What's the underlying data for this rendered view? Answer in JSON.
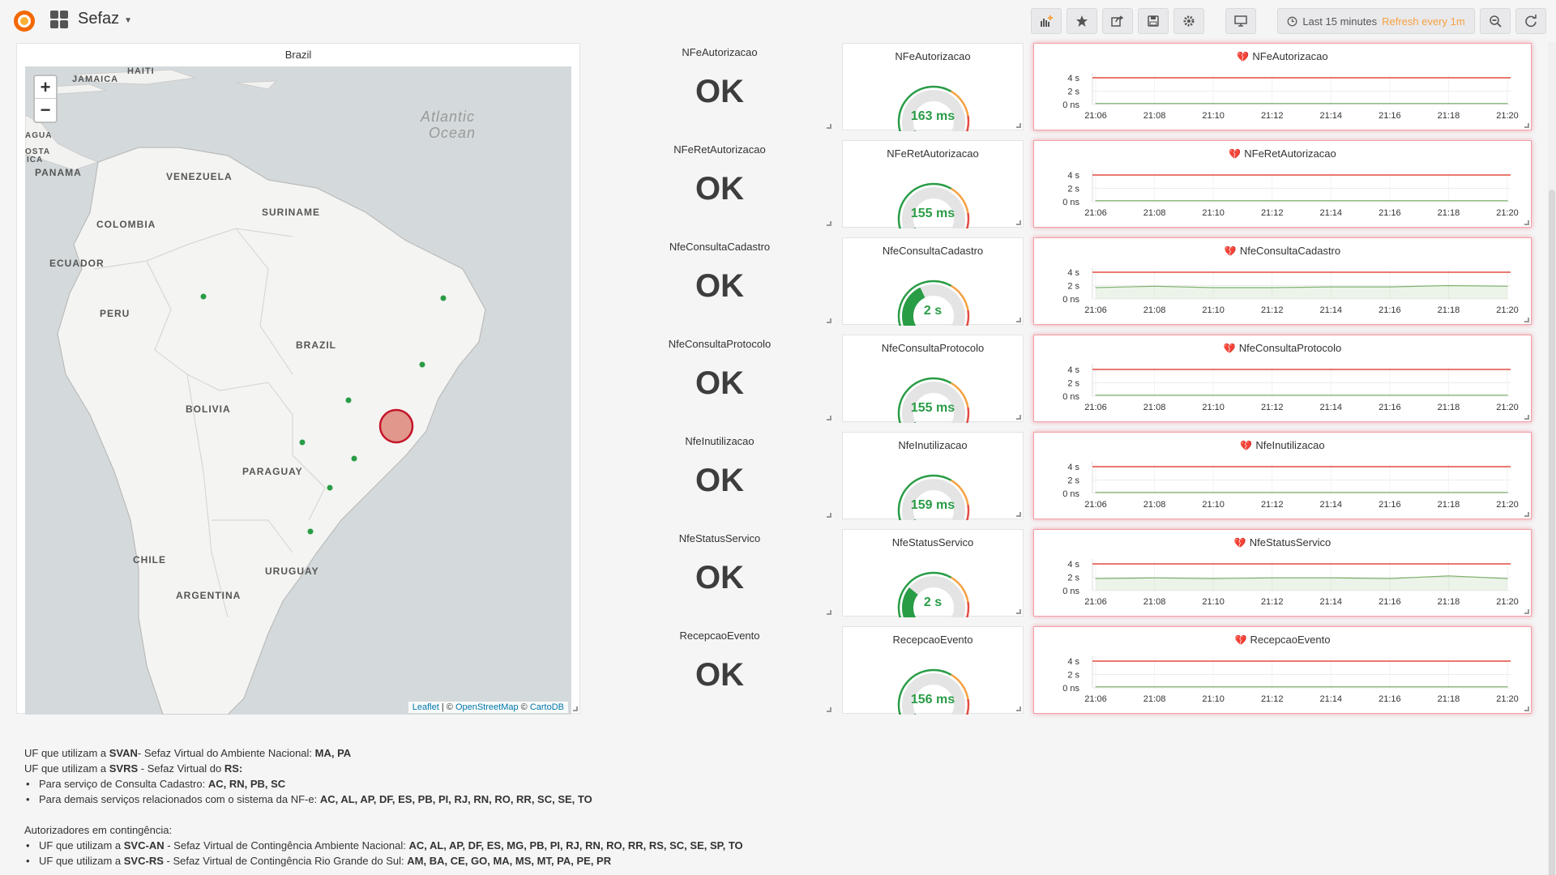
{
  "app": {
    "dashboard_title": "Sefaz",
    "time_range_label": "Last 15 minutes",
    "refresh_label": "Refresh every 1m",
    "accent_color": "#f5a142"
  },
  "toolbar": {
    "icons": [
      "add-panel-icon",
      "star-icon",
      "share-icon",
      "save-icon",
      "settings-icon",
      "tv-mode-icon",
      "clock-icon",
      "zoom-out-icon",
      "refresh-icon"
    ]
  },
  "map": {
    "title": "Brazil",
    "zoom_in": "+",
    "zoom_out": "−",
    "attribution": {
      "leaflet": "Leaflet",
      "separator": " | © ",
      "osm": "OpenStreetMap",
      "copy": " © ",
      "carto": "CartoDB"
    },
    "labels": {
      "haiti": "HAITI",
      "jamaica": "JAMAICA",
      "atlantic1": "Atlantic",
      "atlantic2": "Ocean",
      "agua": "AGUA",
      "osta": "OSTA",
      "ica": "ICA",
      "panama": "PANAMA",
      "venezuela": "VENEZUELA",
      "suriname": "SURINAME",
      "colombia": "COLOMBIA",
      "ecuador": "ECUADOR",
      "peru": "PERU",
      "brazil": "BRAZIL",
      "bolivia": "BOLIVIA",
      "paraguay": "PARAGUAY",
      "chile": "CHILE",
      "uruguay": "URUGUAY",
      "argentina": "ARGENTINA"
    },
    "marker_colors": {
      "ok": "#299c46",
      "alert": "#d44a3a"
    }
  },
  "services": [
    {
      "name": "NFeAutorizacao",
      "status": "OK",
      "gauge_value": "163 ms",
      "gauge_level": 0.04
    },
    {
      "name": "NFeRetAutorizacao",
      "status": "OK",
      "gauge_value": "155 ms",
      "gauge_level": 0.04
    },
    {
      "name": "NfeConsultaCadastro",
      "status": "OK",
      "gauge_value": "2 s",
      "gauge_level": 0.4
    },
    {
      "name": "NfeConsultaProtocolo",
      "status": "OK",
      "gauge_value": "155 ms",
      "gauge_level": 0.04
    },
    {
      "name": "NfeInutilizacao",
      "status": "OK",
      "gauge_value": "159 ms",
      "gauge_level": 0.04
    },
    {
      "name": "NfeStatusServico",
      "status": "OK",
      "gauge_value": "2 s",
      "gauge_level": 0.3
    },
    {
      "name": "RecepcaoEvento",
      "status": "OK",
      "gauge_value": "156 ms",
      "gauge_level": 0.04
    }
  ],
  "graph": {
    "y_ticks": [
      "4 s",
      "2 s",
      "0 ns"
    ],
    "x_ticks": [
      "21:06",
      "21:08",
      "21:10",
      "21:12",
      "21:14",
      "21:16",
      "21:18",
      "21:20"
    ],
    "threshold_color": "#e24d42",
    "series_color": "#7eb26d"
  },
  "chart_data": {
    "type": "line",
    "x": [
      "21:06",
      "21:08",
      "21:10",
      "21:12",
      "21:14",
      "21:16",
      "21:18",
      "21:20"
    ],
    "ylim": [
      0,
      4
    ],
    "threshold": 4,
    "series": [
      {
        "values": [
          0.16,
          0.16,
          0.16,
          0.16,
          0.16,
          0.16,
          0.16,
          0.16
        ]
      },
      {
        "values": [
          0.16,
          0.16,
          0.16,
          0.16,
          0.16,
          0.16,
          0.16,
          0.16
        ]
      },
      {
        "values": [
          1.7,
          1.9,
          1.7,
          1.7,
          1.8,
          1.8,
          2.0,
          1.9
        ]
      },
      {
        "values": [
          0.16,
          0.16,
          0.16,
          0.16,
          0.16,
          0.16,
          0.16,
          0.16
        ]
      },
      {
        "values": [
          0.16,
          0.16,
          0.16,
          0.16,
          0.16,
          0.16,
          0.16,
          0.16
        ]
      },
      {
        "values": [
          1.8,
          1.9,
          1.8,
          1.9,
          1.9,
          1.8,
          2.2,
          1.8
        ]
      },
      {
        "values": [
          0.16,
          0.16,
          0.16,
          0.16,
          0.16,
          0.16,
          0.16,
          0.16
        ]
      }
    ]
  },
  "text": {
    "svan_pre": "UF que utilizam a ",
    "svan_bold": "SVAN",
    "svan_mid": "- Sefaz Virtual do Ambiente Nacional: ",
    "svan_ufs": "MA, PA",
    "svrs_pre": "UF que utilizam a ",
    "svrs_bold": "SVRS",
    "svrs_mid": " - Sefaz Virtual do ",
    "svrs_rs": "RS:",
    "svrs_item1_pre": "Para serviço de Consulta Cadastro: ",
    "svrs_item1_ufs": "AC, RN, PB, SC",
    "svrs_item2_pre": "Para demais serviços relacionados com o sistema da NF-e: ",
    "svrs_item2_ufs": "AC, AL, AP, DF, ES, PB, PI, RJ, RN, RO, RR, SC, SE, TO",
    "contingencia": "Autorizadores em contingência:",
    "svcan_pre": "UF que utilizam a ",
    "svcan_bold": "SVC-AN",
    "svcan_mid": " - Sefaz Virtual de Contingência Ambiente Nacional: ",
    "svcan_ufs": "AC, AL, AP, DF, ES, MG, PB, PI, RJ, RN, RO, RR, RS, SC, SE, SP, TO",
    "svcrs_pre": "UF que utilizam a ",
    "svcrs_bold": "SVC-RS",
    "svcrs_mid": " - Sefaz Virtual de Contingência Rio Grande do Sul: ",
    "svcrs_ufs": "AM, BA, CE, GO, MA, MS, MT, PA, PE, PR"
  }
}
